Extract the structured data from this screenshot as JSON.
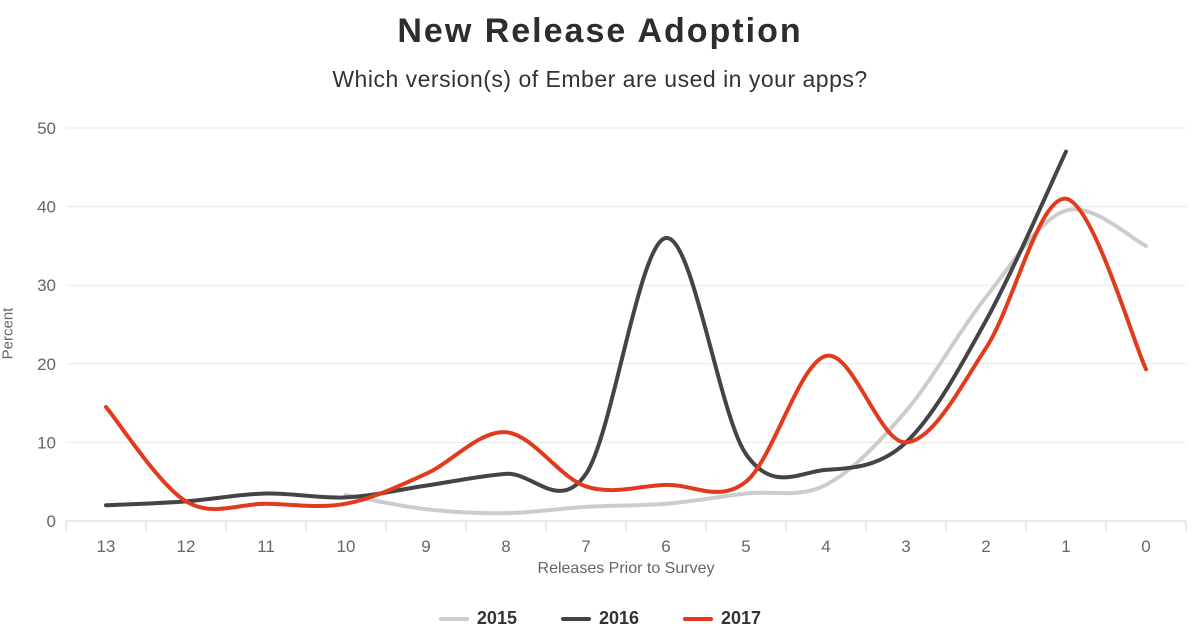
{
  "page": {
    "background": "#ffffff"
  },
  "chart_data": {
    "type": "line",
    "curve": "spline",
    "title": "New Release Adoption",
    "subtitle": "Which version(s) of Ember are used in your apps?",
    "xlabel": "Releases Prior to Survey",
    "ylabel": "Percent",
    "x_categories": [
      "13",
      "12",
      "11",
      "10",
      "9",
      "8",
      "7",
      "6",
      "5",
      "4",
      "3",
      "2",
      "1",
      "0"
    ],
    "y_ticks": [
      "0",
      "10",
      "20",
      "30",
      "40",
      "50"
    ],
    "ylim": [
      0,
      50
    ],
    "grid": "horizontal-only",
    "legend_position": "bottom-center",
    "axis_line_color": "#ccd6eb",
    "grid_color": "#e7e7e7",
    "tick_label_color": "#666666",
    "series": [
      {
        "name": "2015",
        "color": "#cccccc",
        "points": [
          [
            10,
            3.3
          ],
          [
            9,
            1.5
          ],
          [
            8,
            1.0
          ],
          [
            7,
            1.8
          ],
          [
            6,
            2.2
          ],
          [
            5,
            3.5
          ],
          [
            4,
            4.6
          ],
          [
            3,
            14.0
          ],
          [
            2,
            28.5
          ],
          [
            1,
            39.5
          ],
          [
            0,
            35.0
          ]
        ]
      },
      {
        "name": "2016",
        "color": "#434348",
        "points": [
          [
            13,
            2.0
          ],
          [
            12,
            2.5
          ],
          [
            11,
            3.5
          ],
          [
            10,
            3.0
          ],
          [
            9,
            4.5
          ],
          [
            8,
            6.0
          ],
          [
            7,
            6.0
          ],
          [
            6,
            36.0
          ],
          [
            5,
            8.5
          ],
          [
            4,
            6.5
          ],
          [
            3,
            10.0
          ],
          [
            2,
            25.5
          ],
          [
            1,
            47.0
          ]
        ]
      },
      {
        "name": "2017",
        "color": "#e23a1d",
        "points": [
          [
            13,
            14.5
          ],
          [
            12,
            2.5
          ],
          [
            11,
            2.2
          ],
          [
            10,
            2.2
          ],
          [
            9,
            6.0
          ],
          [
            8,
            11.3
          ],
          [
            7,
            4.4
          ],
          [
            6,
            4.6
          ],
          [
            5,
            5.0
          ],
          [
            4,
            21.0
          ],
          [
            3,
            10.0
          ],
          [
            2,
            22.0
          ],
          [
            1,
            41.0
          ],
          [
            0,
            19.3
          ]
        ]
      }
    ]
  }
}
